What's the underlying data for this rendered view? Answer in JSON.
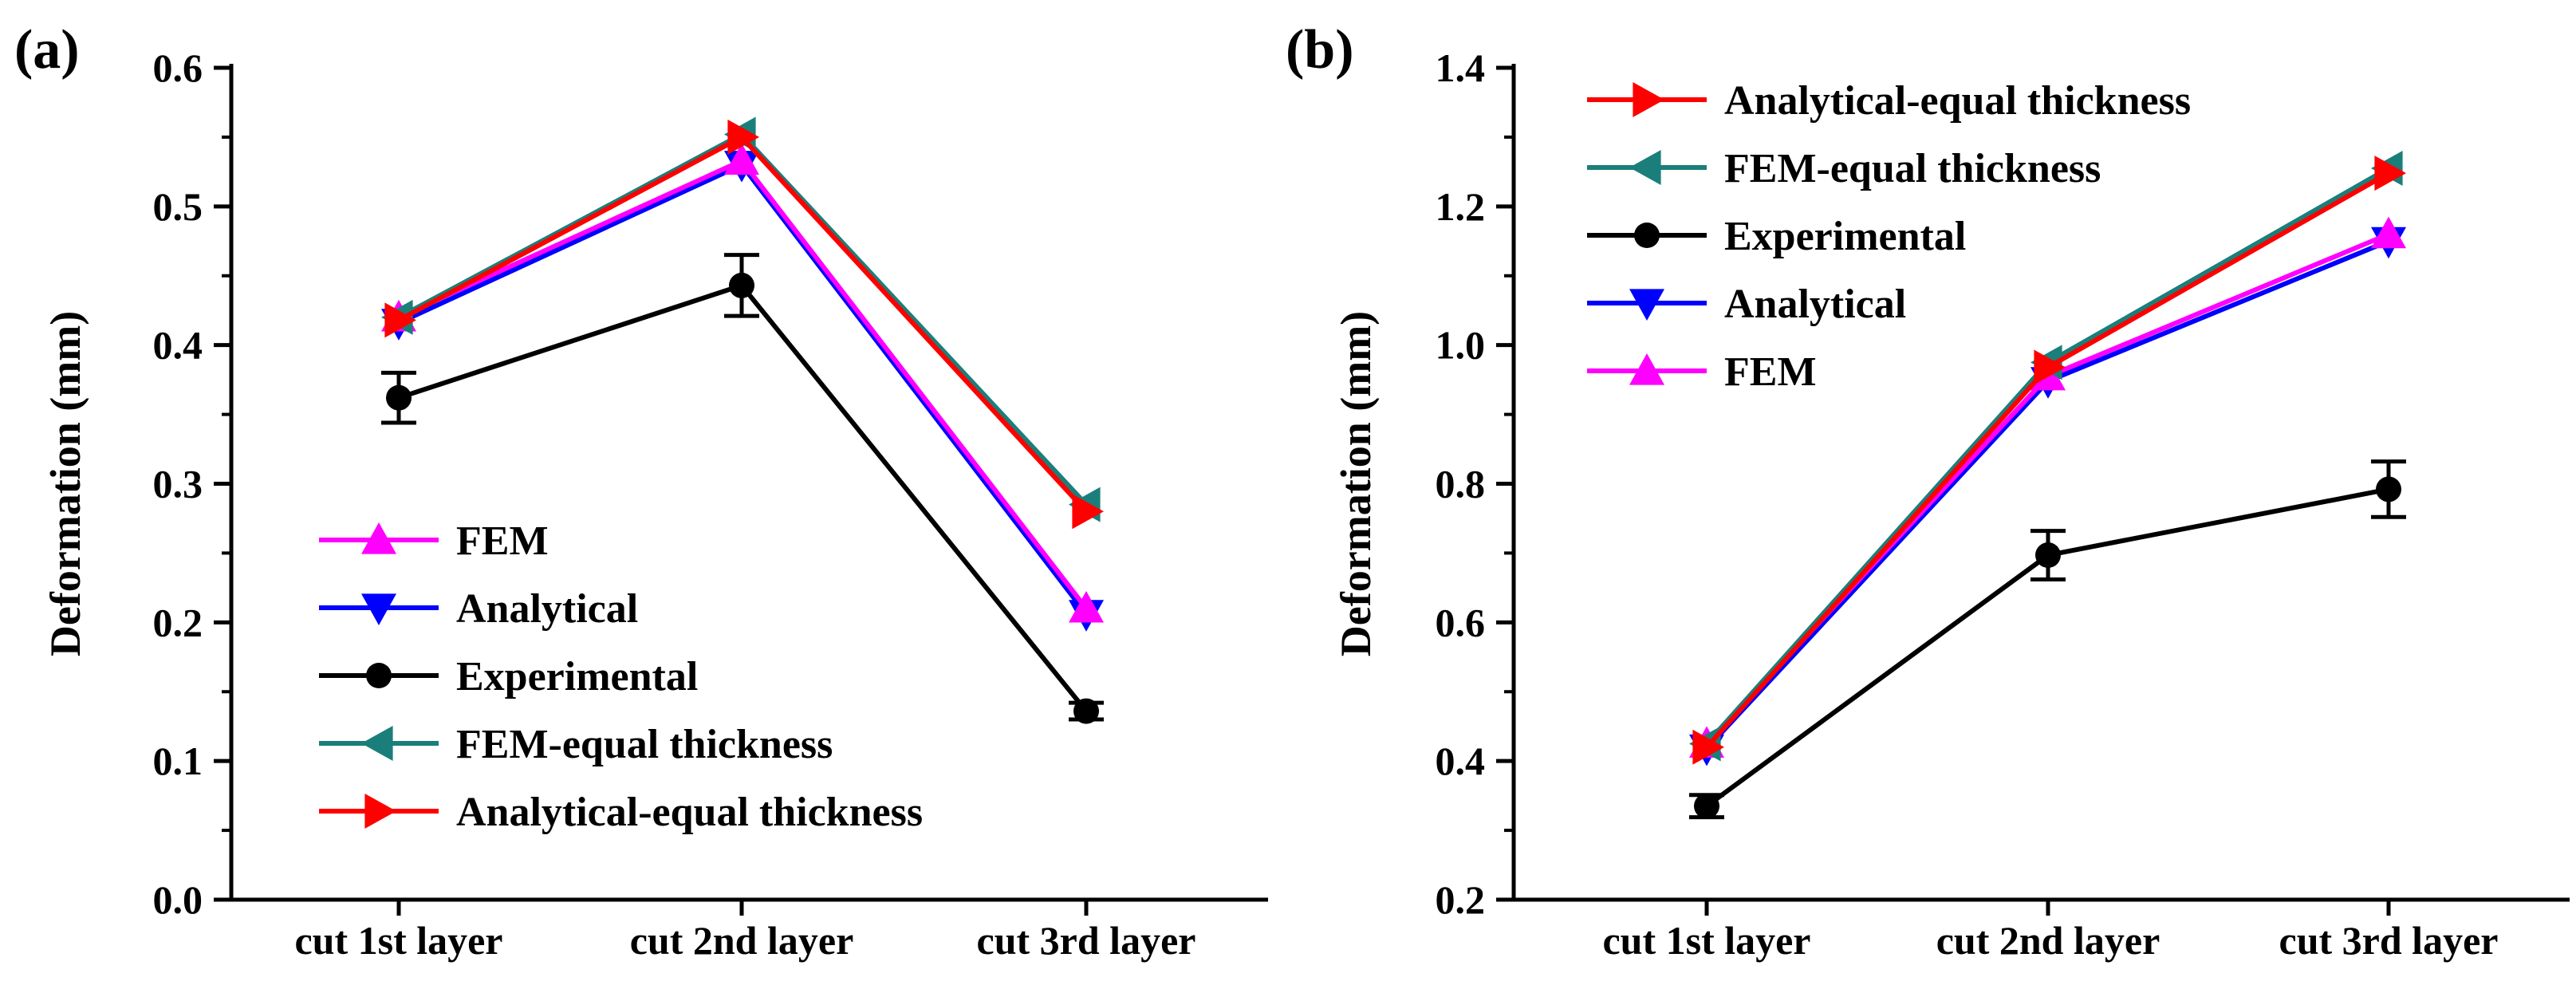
{
  "chart_data": [
    {
      "type": "line",
      "panel_label": "(a)",
      "title": "",
      "xlabel": "",
      "ylabel": "Deformation (mm)",
      "categories": [
        "cut 1st layer",
        "cut 2nd layer",
        "cut 3rd layer"
      ],
      "ylim": [
        0.0,
        0.6
      ],
      "yticks": [
        0.0,
        0.1,
        0.2,
        0.3,
        0.4,
        0.5,
        0.6
      ],
      "ytick_labels": [
        "0.0",
        "0.1",
        "0.2",
        "0.3",
        "0.4",
        "0.5",
        "0.6"
      ],
      "grid": false,
      "legend_position": "bottom-left",
      "legend_order": [
        "FEM",
        "Analytical",
        "Experimental",
        "FEM-equal thickness",
        "Analytical-equal thickness"
      ],
      "series": [
        {
          "name": "FEM-equal thickness",
          "values": [
            0.42,
            0.552,
            0.285
          ],
          "color": "#1a7f7a",
          "marker": "triangle-left"
        },
        {
          "name": "Analytical-equal thickness",
          "values": [
            0.418,
            0.55,
            0.28
          ],
          "color": "#ff0000",
          "marker": "triangle-right"
        },
        {
          "name": "FEM",
          "values": [
            0.42,
            0.533,
            0.21
          ],
          "color": "#ff00ff",
          "marker": "triangle-up"
        },
        {
          "name": "Analytical",
          "values": [
            0.416,
            0.53,
            0.206
          ],
          "color": "#0000ff",
          "marker": "triangle-down"
        },
        {
          "name": "Experimental",
          "values": [
            0.362,
            0.443,
            0.136
          ],
          "errors": [
            0.018,
            0.022,
            0.006
          ],
          "color": "#000000",
          "marker": "circle"
        }
      ]
    },
    {
      "type": "line",
      "panel_label": "(b)",
      "title": "",
      "xlabel": "",
      "ylabel": "Deformation (mm)",
      "categories": [
        "cut 1st layer",
        "cut 2nd layer",
        "cut 3rd layer"
      ],
      "ylim": [
        0.2,
        1.4
      ],
      "yticks": [
        0.2,
        0.4,
        0.6,
        0.8,
        1.0,
        1.2,
        1.4
      ],
      "ytick_labels": [
        "0.2",
        "0.4",
        "0.6",
        "0.8",
        "1.0",
        "1.2",
        "1.4"
      ],
      "grid": false,
      "legend_position": "top-left",
      "legend_order": [
        "Analytical-equal thickness",
        "FEM-equal thickness",
        "Experimental",
        "Analytical",
        "FEM"
      ],
      "series": [
        {
          "name": "FEM-equal thickness",
          "values": [
            0.425,
            0.975,
            1.255
          ],
          "color": "#1a7f7a",
          "marker": "triangle-left"
        },
        {
          "name": "Analytical-equal thickness",
          "values": [
            0.42,
            0.968,
            1.248
          ],
          "color": "#ff0000",
          "marker": "triangle-right"
        },
        {
          "name": "FEM",
          "values": [
            0.425,
            0.955,
            1.16
          ],
          "color": "#ff00ff",
          "marker": "triangle-up"
        },
        {
          "name": "Analytical",
          "values": [
            0.418,
            0.948,
            1.15
          ],
          "color": "#0000ff",
          "marker": "triangle-down"
        },
        {
          "name": "Experimental",
          "values": [
            0.335,
            0.697,
            0.792
          ],
          "errors": [
            0.016,
            0.035,
            0.04
          ],
          "color": "#000000",
          "marker": "circle"
        }
      ]
    }
  ]
}
